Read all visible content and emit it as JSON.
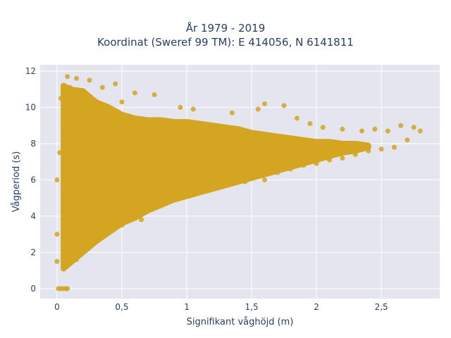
{
  "chart_data": {
    "type": "scatter",
    "title_lines": [
      "År 1979 - 2019",
      "Koordinat (Sweref 99 TM): E 414056, N 6141811"
    ],
    "xlabel": "Signifikant våghöjd (m)",
    "ylabel": "Vågperiod (s)",
    "xlim": [
      -0.13,
      2.95
    ],
    "ylim": [
      -0.55,
      12.35
    ],
    "x_ticks": [
      0,
      0.5,
      1,
      1.5,
      2,
      2.5
    ],
    "x_tick_labels": [
      "0",
      "0,5",
      "1",
      "1,5",
      "2",
      "2,5"
    ],
    "y_ticks": [
      0,
      2,
      4,
      6,
      8,
      10,
      12
    ],
    "y_tick_labels": [
      "0",
      "2",
      "4",
      "6",
      "8",
      "10",
      "12"
    ],
    "grid": true,
    "marker_color": "#D4A520",
    "plot_bg": "#E5E5EF",
    "points": [
      [
        0.01,
        0
      ],
      [
        0.03,
        0
      ],
      [
        0.05,
        0
      ],
      [
        0.07,
        0
      ],
      [
        0.08,
        0
      ],
      [
        0.08,
        11.7
      ],
      [
        0.15,
        11.6
      ],
      [
        0.25,
        11.5
      ],
      [
        0.35,
        11.1
      ],
      [
        0.45,
        11.3
      ],
      [
        0.5,
        10.3
      ],
      [
        0.6,
        10.8
      ],
      [
        0.75,
        10.7
      ],
      [
        0.95,
        10.0
      ],
      [
        1.05,
        9.9
      ],
      [
        1.35,
        9.7
      ],
      [
        1.55,
        9.9
      ],
      [
        1.6,
        10.2
      ],
      [
        1.75,
        10.1
      ],
      [
        1.85,
        9.4
      ],
      [
        1.95,
        9.1
      ],
      [
        2.05,
        8.9
      ],
      [
        2.2,
        8.8
      ],
      [
        2.35,
        8.7
      ],
      [
        2.45,
        8.8
      ],
      [
        2.55,
        8.7
      ],
      [
        2.65,
        9.0
      ],
      [
        2.75,
        8.9
      ],
      [
        2.8,
        8.7
      ],
      [
        2.7,
        8.2
      ],
      [
        2.6,
        7.8
      ],
      [
        2.5,
        7.7
      ],
      [
        2.4,
        7.6
      ],
      [
        2.3,
        7.4
      ],
      [
        2.2,
        7.2
      ],
      [
        2.1,
        7.1
      ],
      [
        2.0,
        6.9
      ],
      [
        1.9,
        6.8
      ],
      [
        1.8,
        6.6
      ],
      [
        1.7,
        6.4
      ],
      [
        1.6,
        6.0
      ],
      [
        1.45,
        5.9
      ],
      [
        1.3,
        5.7
      ],
      [
        1.15,
        5.5
      ],
      [
        1.0,
        5.2
      ],
      [
        0.8,
        4.8
      ],
      [
        0.65,
        3.8
      ],
      [
        0.5,
        3.5
      ],
      [
        0.38,
        3.0
      ],
      [
        0.25,
        2.4
      ],
      [
        0.15,
        1.6
      ],
      [
        0.05,
        1.2
      ],
      [
        0.0,
        1.5
      ],
      [
        0.0,
        3.0
      ],
      [
        0.0,
        6.0
      ],
      [
        0.02,
        7.5
      ],
      [
        0.05,
        9.2
      ],
      [
        0.03,
        10.5
      ],
      [
        0.1,
        11.1
      ]
    ],
    "envelope": {
      "x": [
        0.05,
        0.1,
        0.2,
        0.3,
        0.4,
        0.5,
        0.6,
        0.7,
        0.8,
        0.9,
        1.0,
        1.1,
        1.2,
        1.3,
        1.4,
        1.5,
        1.6,
        1.7,
        1.8,
        1.9,
        2.0,
        2.1,
        2.2,
        2.3,
        2.4
      ],
      "y_low": [
        1.1,
        1.4,
        2.0,
        2.6,
        3.1,
        3.6,
        3.9,
        4.3,
        4.6,
        4.9,
        5.1,
        5.3,
        5.5,
        5.7,
        5.9,
        6.1,
        6.3,
        6.5,
        6.7,
        6.9,
        7.1,
        7.3,
        7.5,
        7.6,
        7.8
      ],
      "y_high": [
        11.2,
        11.0,
        10.9,
        10.3,
        10.0,
        9.6,
        9.4,
        9.3,
        9.3,
        9.2,
        9.2,
        9.1,
        9.0,
        8.9,
        8.8,
        8.6,
        8.5,
        8.4,
        8.3,
        8.2,
        8.1,
        8.1,
        8.0,
        8.0,
        7.9
      ]
    }
  }
}
